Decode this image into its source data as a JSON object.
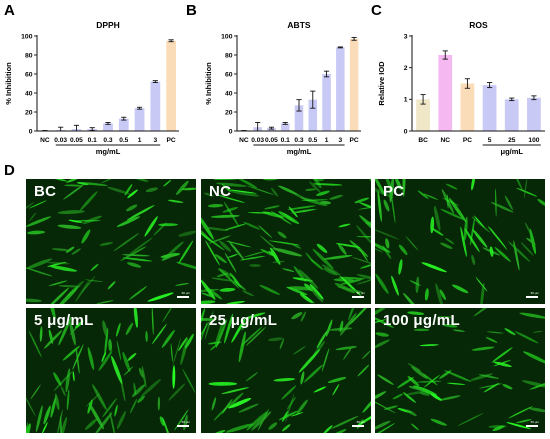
{
  "panels": {
    "a": "A",
    "b": "B",
    "c": "C",
    "d": "D"
  },
  "colors": {
    "bar": "#c9c9f6",
    "nc": "#f6b8f0",
    "pc": "#fbdcb8",
    "bc": "#efe7c8",
    "cell": "#3ee83a",
    "bg": "#062806"
  },
  "chart_data": [
    {
      "type": "bar",
      "id": "dpph",
      "title": "DPPH",
      "ylabel": "% Inhibition",
      "xlabel": "mg/mL",
      "categories": [
        "NC",
        "0.03",
        "0.05",
        "0.1",
        "0.3",
        "0.5",
        "1",
        "3",
        "PC"
      ],
      "values": [
        0,
        1,
        2,
        2,
        8,
        13,
        24,
        52,
        95
      ],
      "errors": [
        0.5,
        3,
        4,
        1.5,
        1,
        1.5,
        1,
        1,
        1
      ],
      "ylim": [
        0,
        100
      ],
      "yticks": [
        0,
        20,
        40,
        60,
        80,
        100
      ],
      "bar_colors": [
        "bar",
        "bar",
        "bar",
        "bar",
        "bar",
        "bar",
        "bar",
        "bar",
        "pc"
      ],
      "xlabel_span": [
        1,
        7
      ]
    },
    {
      "type": "bar",
      "id": "abts",
      "title": "ABTS",
      "ylabel": "% Inhibition",
      "xlabel": "mg/mL",
      "categories": [
        "NC",
        "0.03",
        "0.05",
        "0.1",
        "0.3",
        "0.5",
        "1",
        "3",
        "PC"
      ],
      "values": [
        0,
        4,
        3,
        8,
        27,
        33,
        60,
        88,
        97
      ],
      "errors": [
        0.5,
        5,
        1,
        1,
        6,
        9,
        3,
        0.5,
        1.5
      ],
      "ylim": [
        0,
        100
      ],
      "yticks": [
        0,
        20,
        40,
        60,
        80,
        100
      ],
      "bar_colors": [
        "bar",
        "bar",
        "bar",
        "bar",
        "bar",
        "bar",
        "bar",
        "bar",
        "pc"
      ],
      "xlabel_span": [
        1,
        7
      ]
    },
    {
      "type": "bar",
      "id": "ros",
      "title": "ROS",
      "ylabel": "Relative IOD",
      "xlabel": "μg/mL",
      "categories": [
        "BC",
        "NC",
        "PC",
        "5",
        "25",
        "100"
      ],
      "values": [
        1.0,
        2.4,
        1.5,
        1.45,
        1.0,
        1.05
      ],
      "errors": [
        0.15,
        0.13,
        0.15,
        0.08,
        0.04,
        0.06
      ],
      "ylim": [
        0,
        3
      ],
      "yticks": [
        0,
        1,
        2,
        3
      ],
      "bar_colors": [
        "bc",
        "nc",
        "pc",
        "bar",
        "bar",
        "bar"
      ],
      "xlabel_span": [
        3,
        5
      ]
    }
  ],
  "images": [
    {
      "label": "BC",
      "scale": "50 μm"
    },
    {
      "label": "NC",
      "scale": "50 μm"
    },
    {
      "label": "PC",
      "scale": "50 μm"
    },
    {
      "label": "5 μg/mL",
      "scale": "50 μm"
    },
    {
      "label": "25 μg/mL",
      "scale": "50 μm"
    },
    {
      "label": "100 μg/mL",
      "scale": "50 μm"
    }
  ]
}
